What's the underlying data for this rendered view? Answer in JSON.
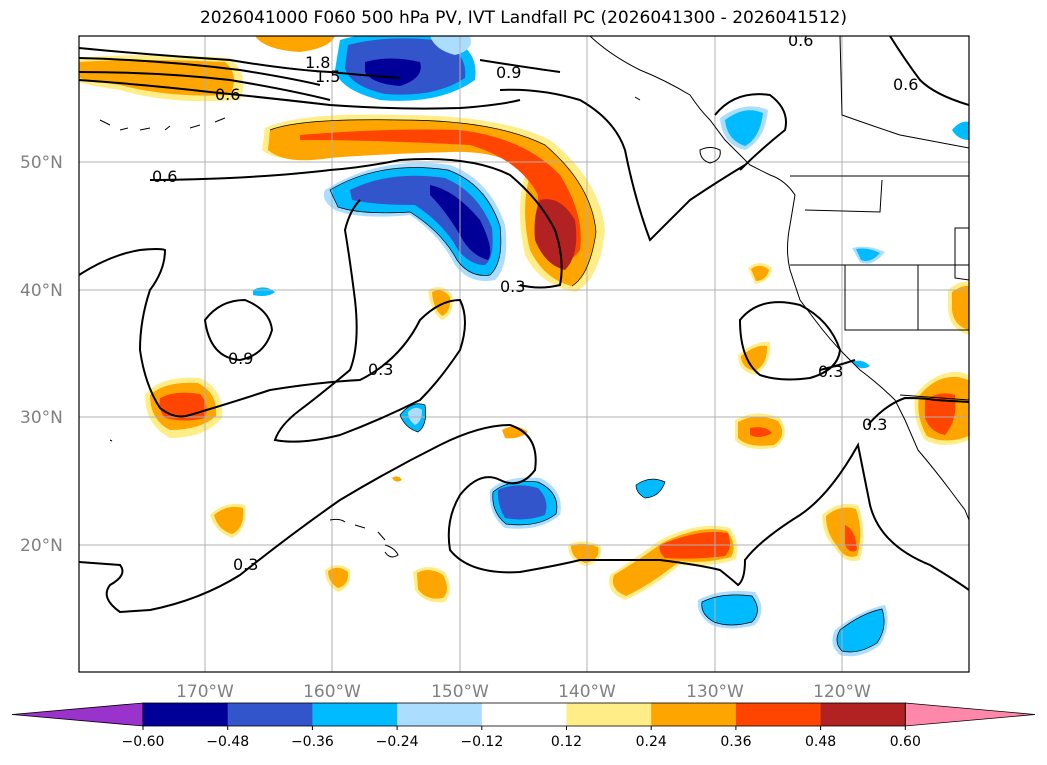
{
  "title": "2026041000 F060 500 hPa PV, IVT Landfall PC (2026041300 - 2026041512)",
  "latitude_labels": [
    "50°N",
    "40°N",
    "30°N",
    "20°N"
  ],
  "longitude_labels": [
    "170°W",
    "160°W",
    "150°W",
    "140°W",
    "130°W",
    "120°W"
  ],
  "contour_labels": [
    "1.8",
    "1.5",
    "0.9",
    "0.6",
    "0.6",
    "0.6",
    "0.6",
    "0.9",
    "0.3",
    "0.3",
    "0.3",
    "0.3",
    "0.3"
  ],
  "colorbar": {
    "tick_labels": [
      "−0.60",
      "−0.48",
      "−0.36",
      "−0.24",
      "−0.12",
      "0.12",
      "0.24",
      "0.36",
      "0.48",
      "0.60"
    ],
    "colors": [
      "#9933cc",
      "#000099",
      "#3355cc",
      "#00bbff",
      "#aaddff",
      "#ffffff",
      "#ffee88",
      "#ffa500",
      "#ff4500",
      "#b22222",
      "#ff88aa"
    ]
  },
  "palette": {
    "dark_blue": "#000099",
    "mid_blue": "#3355cc",
    "cyan": "#00bbff",
    "light_yellow": "#ffee88",
    "orange": "#ffa500",
    "red_orange": "#ff4500",
    "dark_red": "#b22222"
  }
}
